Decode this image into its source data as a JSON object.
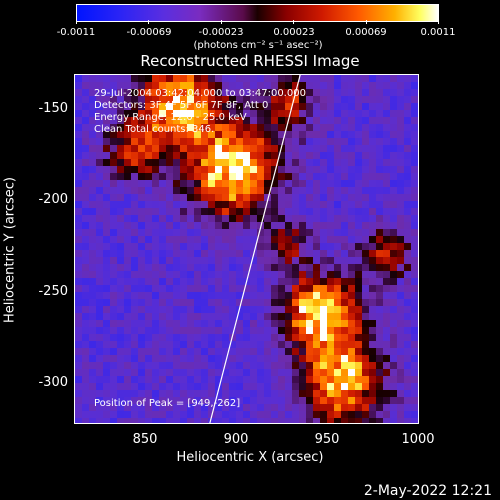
{
  "colorbar": {
    "ticks": [
      "-0.0011",
      "-0.00069",
      "-0.00023",
      "0.00023",
      "0.00069",
      "0.0011"
    ],
    "unit": "(photons cm⁻² s⁻¹ asec⁻²)"
  },
  "chart_data": {
    "type": "heatmap",
    "title": "Reconstructed RHESSI Image",
    "xlabel": "Heliocentric X (arcsec)",
    "ylabel": "Heliocentric Y (arcsec)",
    "xlim": [
      813,
      1003
    ],
    "ylim": [
      -323,
      -134
    ],
    "xticks": [
      "850",
      "900",
      "950",
      "1000"
    ],
    "yticks": [
      "-150",
      "-200",
      "-250",
      "-300"
    ],
    "zlim": [
      -0.0011,
      0.0011
    ],
    "peak": [
      949,
      -262
    ],
    "info_lines": [
      "29-Jul-2004 03:42:04.000 to 03:47:00.000",
      "Detectors: 3F 4F 5F 6F 7F 8F, Att 0",
      "Energy Range: 12.0 - 25.0 keV",
      "Clean    Total counts: 346."
    ],
    "peak_label": "Position of Peak = [949,-262]",
    "limb_line": true
  },
  "footer": {
    "date": "2-May-2022 12:21"
  }
}
